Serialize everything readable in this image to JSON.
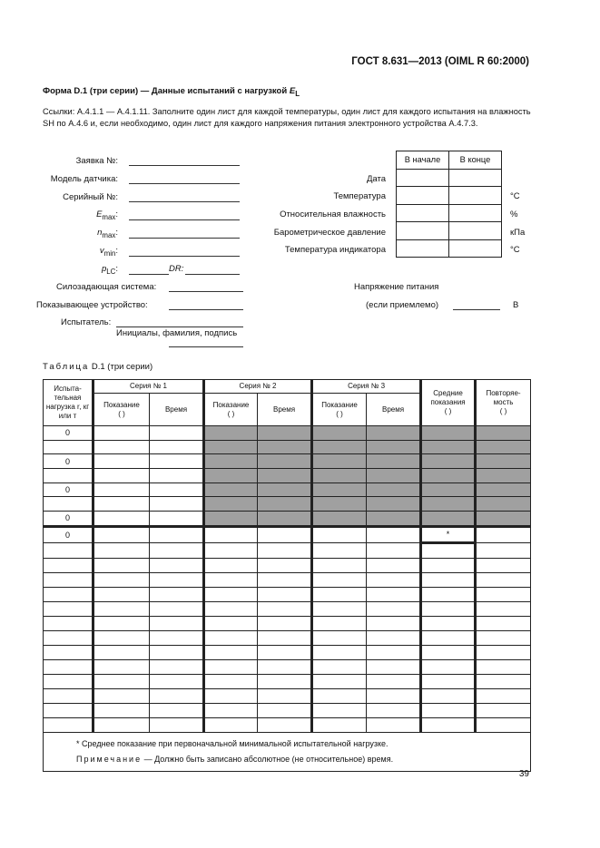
{
  "header": {
    "standard": "ГОСТ 8.631—2013 (OIML R 60:2000)"
  },
  "form": {
    "title": "Форма D.1 (три серии) — Данные испытаний с нагрузкой ",
    "title_symbol": "E",
    "title_sub": "L",
    "references": "Ссылки: А.4.1.1 — А.4.1.11. Заполните один лист для каждой температуры, один лист для каждого испытания на влажность SH по А.4.6 и, если необходимо, один лист для каждого напряжения питания электронного устройства А.4.7.3."
  },
  "fields": {
    "application": "Заявка №:",
    "model": "Модель датчика:",
    "serial": "Серийный №:",
    "emax": "E",
    "emax_sub": "max",
    "nmax": "n",
    "nmax_sub": "max",
    "vmin": "v",
    "vmin_sub": "min",
    "plc": "p",
    "plc_sub": "LC",
    "dr": "DR:",
    "load_system": "Силозадающая система:",
    "indicator": "Показывающее устройство:",
    "tester": "Испытатель:",
    "tester_hint": "Инициалы, фамилия, подпись"
  },
  "env": {
    "col_start": "В начале",
    "col_end": "В конце",
    "rows": [
      {
        "label": "Дата",
        "unit": ""
      },
      {
        "label": "Температура",
        "unit": "°С"
      },
      {
        "label": "Относительная влажность",
        "unit": "%"
      },
      {
        "label": "Барометрическое давление",
        "unit": "кПа"
      },
      {
        "label": "Температура индикатора",
        "unit": "°С"
      }
    ],
    "voltage_label": "Напряжение питания",
    "voltage_hint": "(если приемлемо)",
    "voltage_unit": "В"
  },
  "table": {
    "caption_prefix": "Таблица",
    "caption": " D.1 (три серии)",
    "col_load": "Испыта-тельная нагрузка r, кг или т",
    "series": [
      "Серия № 1",
      "Серия № 2",
      "Серия № 3"
    ],
    "reading": "Показание",
    "reading_unit": "(      )",
    "time": "Время",
    "avg": "Средние показания",
    "avg_unit": "(      )",
    "rep": "Повторяе-мость",
    "rep_unit": "(      )",
    "top_rows": [
      "0",
      "",
      "0",
      "",
      "0",
      "",
      "0"
    ],
    "bottom_rows": [
      "0",
      "",
      "",
      "",
      "",
      "",
      "",
      "",
      "",
      "",
      "",
      "",
      "",
      ""
    ],
    "star": "*",
    "footnote": "* Среднее показание при первоначальной минимальной испытательной нагрузке.",
    "note_label": "Примечание",
    "note": " — Должно быть записано абсолютное (не относительное) время."
  },
  "page_number": "39"
}
